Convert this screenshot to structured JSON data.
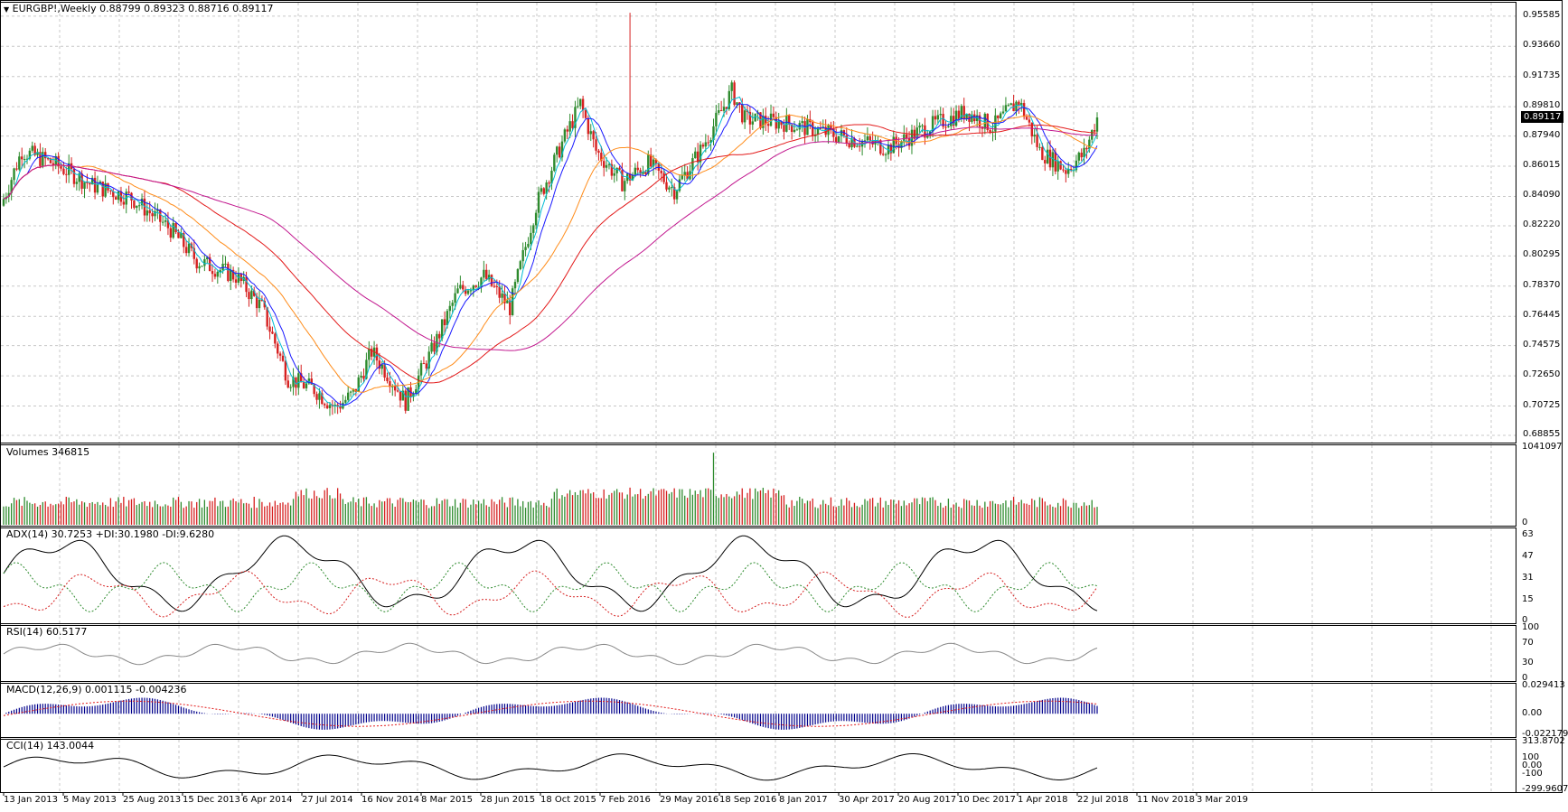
{
  "main": {
    "symbol_menu_icon": "dropdown-triangle-icon",
    "title": "EURGBP!,Weekly  0.88799 0.89323 0.88716 0.89117",
    "price_axis": [
      "0.95585",
      "0.93660",
      "0.91735",
      "0.89810",
      "0.87940",
      "0.86015",
      "0.84090",
      "0.82220",
      "0.80295",
      "0.78370",
      "0.76445",
      "0.74575",
      "0.72650",
      "0.70725",
      "0.68855"
    ],
    "current_price": "0.89117"
  },
  "volumes": {
    "title": "Volumes 346815",
    "axis": [
      "1041097",
      "0"
    ]
  },
  "adx": {
    "title": "ADX(14) 30.7253 +DI:30.1980 -DI:9.6280",
    "axis": [
      "63",
      "47",
      "31",
      "15",
      "0"
    ]
  },
  "rsi": {
    "title": "RSI(14) 60.5177",
    "axis": [
      "100",
      "70",
      "30",
      "0"
    ]
  },
  "macd": {
    "title": "MACD(12,26,9) 0.001115 -0.004236",
    "axis": [
      "0.029413",
      "0.00",
      "-0.022179"
    ]
  },
  "cci": {
    "title": "CCI(14) 143.0044",
    "axis": [
      "313.8702",
      "100",
      "0.00",
      "-100",
      "-299.9607"
    ]
  },
  "time_axis": [
    "13 Jan 2013",
    "5 May 2013",
    "25 Aug 2013",
    "15 Dec 2013",
    "6 Apr 2014",
    "27 Jul 2014",
    "16 Nov 2014",
    "8 Mar 2015",
    "28 Jun 2015",
    "18 Oct 2015",
    "7 Feb 2016",
    "29 May 2016",
    "18 Sep 2016",
    "8 Jan 2017",
    "30 Apr 2017",
    "20 Aug 2017",
    "10 Dec 2017",
    "1 Apr 2018",
    "22 Jul 2018",
    "11 Nov 2018",
    "3 Mar 2019"
  ],
  "colors": {
    "bull": "#2e8b2e",
    "bear": "#d62020",
    "ma_fast": "#00bcd4",
    "ma_mid": "#1a1aff",
    "ma_slow": "#ff8c1a",
    "ma_long": "#e31a1a",
    "ma_longest": "#c2188f",
    "macd_hist": "#00008b",
    "macd_signal": "#e31a1a",
    "grid": "#c8c8c8"
  }
}
